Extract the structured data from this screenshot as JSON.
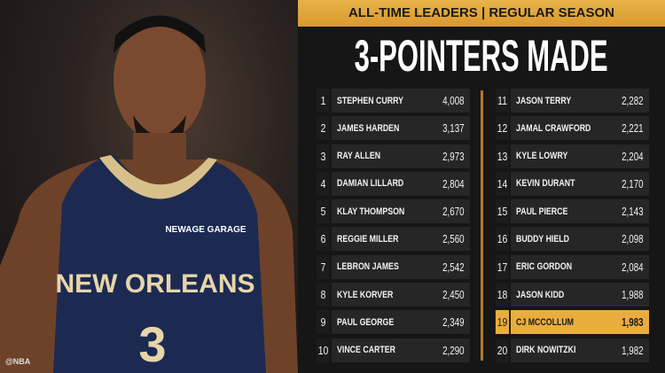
{
  "banner": "ALL-TIME LEADERS | REGULAR SEASON",
  "title": "3-POINTERS MADE",
  "photo": {
    "jersey_text": "NEW ORLEANS",
    "jersey_number": "3",
    "sponsor": "NEWAGE GARAGE",
    "credit": "@NBA"
  },
  "colors": {
    "accent": "#e9ad3e",
    "background": "#161616"
  },
  "leaders": [
    {
      "rank": "1",
      "name": "STEPHEN CURRY",
      "value": "4,008"
    },
    {
      "rank": "2",
      "name": "JAMES HARDEN",
      "value": "3,137"
    },
    {
      "rank": "3",
      "name": "RAY ALLEN",
      "value": "2,973"
    },
    {
      "rank": "4",
      "name": "DAMIAN LILLARD",
      "value": "2,804"
    },
    {
      "rank": "5",
      "name": "KLAY THOMPSON",
      "value": "2,670"
    },
    {
      "rank": "6",
      "name": "REGGIE MILLER",
      "value": "2,560"
    },
    {
      "rank": "7",
      "name": "LEBRON JAMES",
      "value": "2,542"
    },
    {
      "rank": "8",
      "name": "KYLE KORVER",
      "value": "2,450"
    },
    {
      "rank": "9",
      "name": "PAUL GEORGE",
      "value": "2,349"
    },
    {
      "rank": "10",
      "name": "VINCE CARTER",
      "value": "2,290"
    },
    {
      "rank": "11",
      "name": "JASON TERRY",
      "value": "2,282"
    },
    {
      "rank": "12",
      "name": "JAMAL CRAWFORD",
      "value": "2,221"
    },
    {
      "rank": "13",
      "name": "KYLE LOWRY",
      "value": "2,204"
    },
    {
      "rank": "14",
      "name": "KEVIN DURANT",
      "value": "2,170"
    },
    {
      "rank": "15",
      "name": "PAUL PIERCE",
      "value": "2,143"
    },
    {
      "rank": "16",
      "name": "BUDDY HIELD",
      "value": "2,098"
    },
    {
      "rank": "17",
      "name": "ERIC GORDON",
      "value": "2,084"
    },
    {
      "rank": "18",
      "name": "JASON KIDD",
      "value": "1,988"
    },
    {
      "rank": "19",
      "name": "CJ MCCOLLUM",
      "value": "1,983",
      "highlighted": true
    },
    {
      "rank": "20",
      "name": "DIRK NOWITZKI",
      "value": "1,982"
    }
  ]
}
